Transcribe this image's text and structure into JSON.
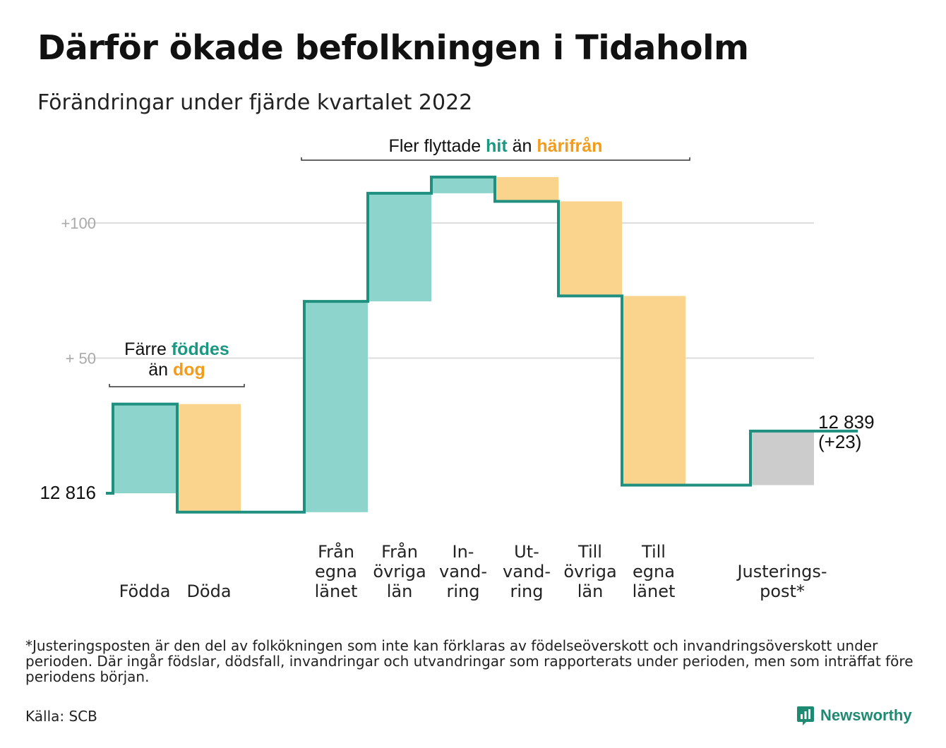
{
  "title": "Därför ökade befolkningen i Tidaholm",
  "subtitle": "Förändringar under fjärde kvartalet 2022",
  "footnote": "*Justeringsposten är den del av folkökningen som inte kan förklaras av födelseöverskott och invandringsöverskott under perioden. Där ingår födslar, dödsfall, invandringar och utvandringar som rapporterats under perioden, men som inträffat före periodens början.",
  "source": "Källa: SCB",
  "brand": {
    "name": "Newsworthy",
    "icon": "newsworthy-logo-icon"
  },
  "colors": {
    "increase": "#8dd5cc",
    "decrease": "#fad48d",
    "adjustment": "#cccccc",
    "line": "#1f8f80",
    "hit_text": "#1a9882",
    "harifran_text": "#f39c1a",
    "grid": "#dddddd",
    "tick_text": "#aaaaaa"
  },
  "chart_data": {
    "type": "bar",
    "subtype": "waterfall",
    "start": {
      "value": 12816,
      "label": "12 816"
    },
    "end": {
      "value": 12839,
      "label": "12 839",
      "change_label": "(+23)"
    },
    "y_ticks": [
      {
        "value": 50,
        "label": "+ 50"
      },
      {
        "value": 100,
        "label": "+100"
      }
    ],
    "ylim": [
      -10,
      118
    ],
    "grid": true,
    "categories": [
      {
        "label": "Födda",
        "delta": 33,
        "kind": "increase",
        "group": 0
      },
      {
        "label": "Döda",
        "delta": -40,
        "kind": "decrease",
        "group": 0
      },
      {
        "label": "Från egna länet",
        "delta": 78,
        "kind": "increase",
        "group": 1
      },
      {
        "label": "Från övriga län",
        "delta": 40,
        "kind": "increase",
        "group": 1
      },
      {
        "label": "In-vand-ring",
        "delta": 6,
        "kind": "increase",
        "group": 1
      },
      {
        "label": "Ut-vand-ring",
        "delta": -9,
        "kind": "decrease",
        "group": 1
      },
      {
        "label": "Till övriga län",
        "delta": -35,
        "kind": "decrease",
        "group": 1
      },
      {
        "label": "Till egna länet",
        "delta": -70,
        "kind": "decrease",
        "group": 1
      },
      {
        "label": "Justerings-post*",
        "delta": 20,
        "kind": "adjustment",
        "group": 2
      }
    ],
    "category_label_lines": [
      [
        "Födda"
      ],
      [
        "Döda"
      ],
      [
        "Från",
        "egna",
        "länet"
      ],
      [
        "Från",
        "övriga",
        "län"
      ],
      [
        "In-",
        "vand-",
        "ring"
      ],
      [
        "Ut-",
        "vand-",
        "ring"
      ],
      [
        "Till",
        "övriga",
        "län"
      ],
      [
        "Till",
        "egna",
        "länet"
      ],
      [
        "Justerings-",
        "post*"
      ]
    ],
    "annotations": [
      {
        "text_parts": [
          [
            "Färre ",
            "plain"
          ],
          [
            "föddes",
            "hit"
          ]
        ],
        "text_parts_2": [
          [
            "än ",
            "plain"
          ],
          [
            "dog",
            "harifran"
          ]
        ],
        "spans": [
          0,
          1
        ]
      },
      {
        "text_parts": [
          [
            "Fler flyttade ",
            "plain"
          ],
          [
            "hit",
            "hit"
          ],
          [
            " än ",
            "plain"
          ],
          [
            "härifrån",
            "harifran"
          ]
        ],
        "spans": [
          2,
          7
        ]
      }
    ]
  }
}
